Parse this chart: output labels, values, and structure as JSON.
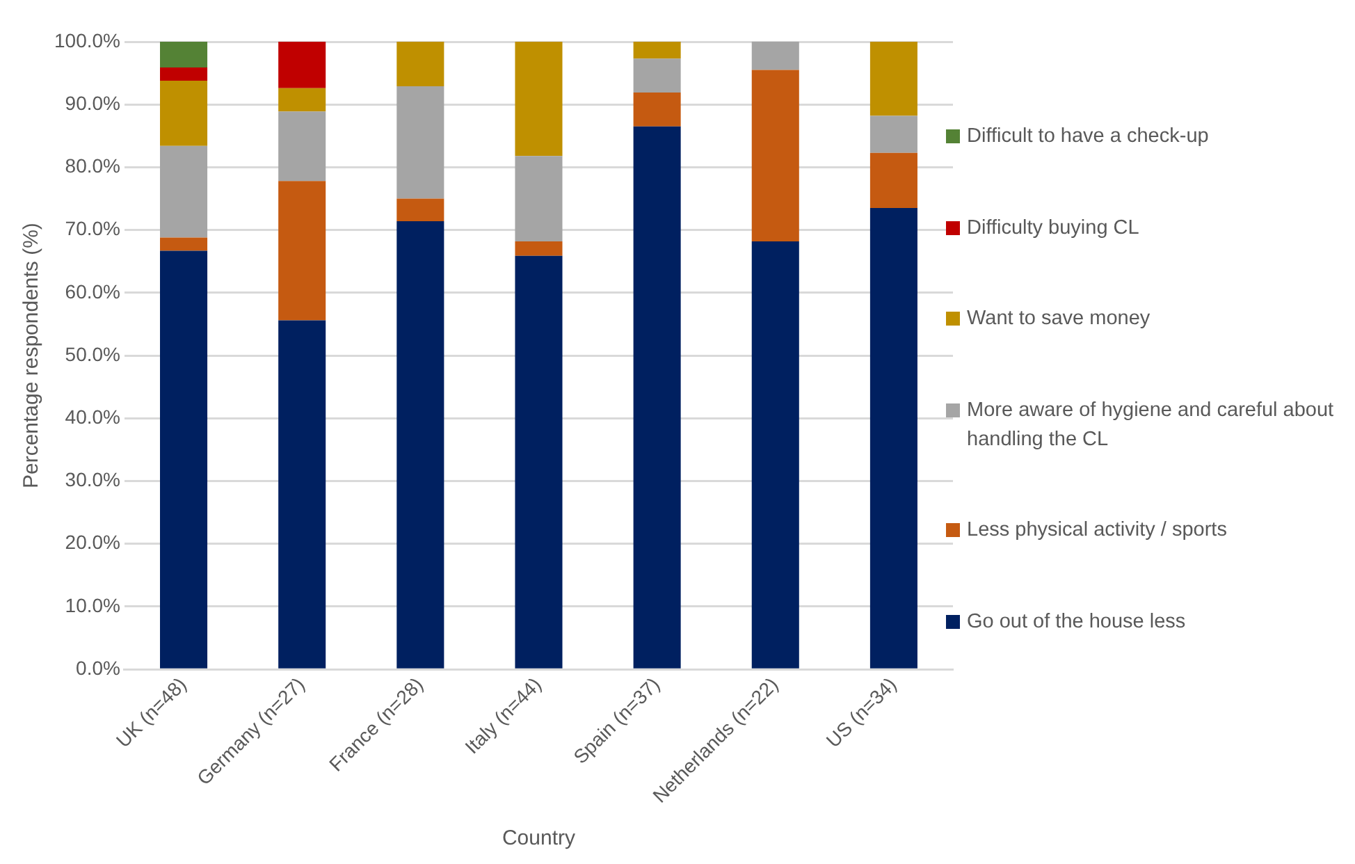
{
  "chart_data": {
    "type": "bar",
    "stacked": true,
    "xlabel": "Country",
    "ylabel": "Percentage respondents (%)",
    "categories": [
      "UK (n=48)",
      "Germany (n=27)",
      "France (n=28)",
      "Italy (n=44)",
      "Spain (n=37)",
      "Netherlands (n=22)",
      "US (n=34)"
    ],
    "series": [
      {
        "name": "Go out of the house less",
        "color": "#002060",
        "values": [
          66.7,
          55.6,
          71.4,
          65.9,
          86.5,
          68.2,
          73.5
        ]
      },
      {
        "name": "Less physical activity / sports",
        "color": "#c55a11",
        "values": [
          2.1,
          22.2,
          3.6,
          2.3,
          5.4,
          27.3,
          8.8
        ]
      },
      {
        "name": "More aware of hygiene and careful about handling the CL",
        "color": "#a5a5a5",
        "values": [
          14.6,
          11.1,
          17.9,
          13.6,
          5.4,
          4.5,
          5.9
        ]
      },
      {
        "name": "Want to save money",
        "color": "#bf9000",
        "values": [
          10.4,
          3.7,
          7.1,
          18.2,
          2.7,
          null,
          11.8
        ]
      },
      {
        "name": "Difficulty buying CL",
        "color": "#c00000",
        "values": [
          2.1,
          7.4,
          null,
          null,
          null,
          null,
          null
        ]
      },
      {
        "name": "Difficult to have a check-up",
        "color": "#548235",
        "values": [
          4.2,
          null,
          null,
          null,
          null,
          null,
          null
        ]
      }
    ],
    "ylim": [
      0,
      100
    ],
    "yticks": [
      {
        "value": 0,
        "label": "0.0%"
      },
      {
        "value": 10,
        "label": "10.0%"
      },
      {
        "value": 20,
        "label": "20.0%"
      },
      {
        "value": 30,
        "label": "30.0%"
      },
      {
        "value": 40,
        "label": "40.0%"
      },
      {
        "value": 50,
        "label": "50.0%"
      },
      {
        "value": 60,
        "label": "60.0%"
      },
      {
        "value": 70,
        "label": "70.0%"
      },
      {
        "value": 80,
        "label": "80.0%"
      },
      {
        "value": 90,
        "label": "90.0%"
      },
      {
        "value": 100,
        "label": "100.0%"
      }
    ],
    "grid": "y",
    "legend": "right"
  }
}
